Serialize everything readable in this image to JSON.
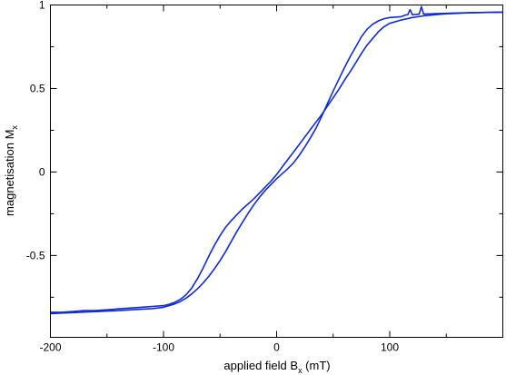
{
  "chart_data": {
    "type": "line",
    "xlabel": {
      "main": "applied field B",
      "sub": "x",
      "tail": " (mT)"
    },
    "ylabel": {
      "main": "magnetisation M",
      "sub": "x"
    },
    "xlim": [
      -200,
      200
    ],
    "ylim": [
      -0.99,
      1.0
    ],
    "x_ticks": [
      -200,
      -100,
      0,
      100
    ],
    "x_tick_labels": [
      "-200",
      "-100",
      "0",
      "100"
    ],
    "x_minor_ticks": [
      -150,
      -50,
      50,
      150
    ],
    "y_ticks": [
      -0.5,
      0,
      0.5,
      1
    ],
    "y_tick_labels": [
      "-0.5",
      "0",
      "0.5",
      "1"
    ],
    "y_minor_ticks": [
      -0.75,
      -0.25,
      0.25,
      0.75
    ],
    "grid": false,
    "legend": "none",
    "line_color": "#0f2bd6",
    "series": [
      {
        "x": [
          -200,
          -190,
          -180,
          -170,
          -160,
          -150,
          -140,
          -130,
          -120,
          -110,
          -100,
          -95,
          -90,
          -85,
          -80,
          -75,
          -70,
          -65,
          -60,
          -55,
          -50,
          -45,
          -40,
          -35,
          -30,
          -25,
          -20,
          -15,
          -10,
          -5,
          0,
          5,
          10,
          15,
          20,
          25,
          30,
          35,
          40,
          45,
          50,
          55,
          60,
          65,
          70,
          75,
          80,
          85,
          90,
          95,
          100,
          110,
          120,
          130,
          140,
          150,
          160,
          170,
          180,
          190,
          200
        ],
        "y": [
          -0.84,
          -0.84,
          -0.835,
          -0.83,
          -0.83,
          -0.825,
          -0.82,
          -0.815,
          -0.81,
          -0.805,
          -0.8,
          -0.792,
          -0.78,
          -0.762,
          -0.735,
          -0.695,
          -0.64,
          -0.575,
          -0.505,
          -0.44,
          -0.38,
          -0.33,
          -0.29,
          -0.255,
          -0.22,
          -0.19,
          -0.16,
          -0.125,
          -0.09,
          -0.055,
          -0.015,
          0.03,
          0.075,
          0.12,
          0.165,
          0.21,
          0.255,
          0.3,
          0.345,
          0.395,
          0.445,
          0.495,
          0.55,
          0.6,
          0.655,
          0.71,
          0.76,
          0.8,
          0.84,
          0.87,
          0.89,
          0.91,
          0.925,
          0.935,
          0.942,
          0.947,
          0.95,
          0.953,
          0.955,
          0.956,
          0.957
        ]
      },
      {
        "x": [
          200,
          190,
          180,
          170,
          160,
          150,
          140,
          130,
          128,
          126,
          124,
          122,
          120,
          118,
          116,
          114,
          112,
          110,
          100,
          95,
          90,
          85,
          80,
          75,
          70,
          65,
          60,
          55,
          50,
          45,
          40,
          35,
          30,
          25,
          20,
          15,
          10,
          5,
          0,
          -5,
          -10,
          -15,
          -20,
          -25,
          -30,
          -35,
          -40,
          -45,
          -50,
          -55,
          -60,
          -65,
          -70,
          -75,
          -80,
          -85,
          -90,
          -95,
          -100,
          -110,
          -120,
          -130,
          -140,
          -150,
          -160,
          -170,
          -180,
          -190,
          -200
        ],
        "y": [
          0.957,
          0.956,
          0.955,
          0.953,
          0.952,
          0.95,
          0.948,
          0.945,
          0.99,
          0.945,
          0.944,
          0.943,
          0.942,
          0.972,
          0.942,
          0.94,
          0.935,
          0.93,
          0.925,
          0.918,
          0.905,
          0.885,
          0.855,
          0.81,
          0.75,
          0.69,
          0.625,
          0.555,
          0.485,
          0.41,
          0.335,
          0.265,
          0.205,
          0.15,
          0.1,
          0.055,
          0.02,
          -0.01,
          -0.04,
          -0.075,
          -0.11,
          -0.15,
          -0.195,
          -0.245,
          -0.3,
          -0.355,
          -0.415,
          -0.475,
          -0.53,
          -0.58,
          -0.625,
          -0.665,
          -0.7,
          -0.73,
          -0.755,
          -0.775,
          -0.79,
          -0.8,
          -0.81,
          -0.818,
          -0.822,
          -0.826,
          -0.83,
          -0.833,
          -0.836,
          -0.839,
          -0.842,
          -0.845,
          -0.848
        ]
      }
    ]
  }
}
